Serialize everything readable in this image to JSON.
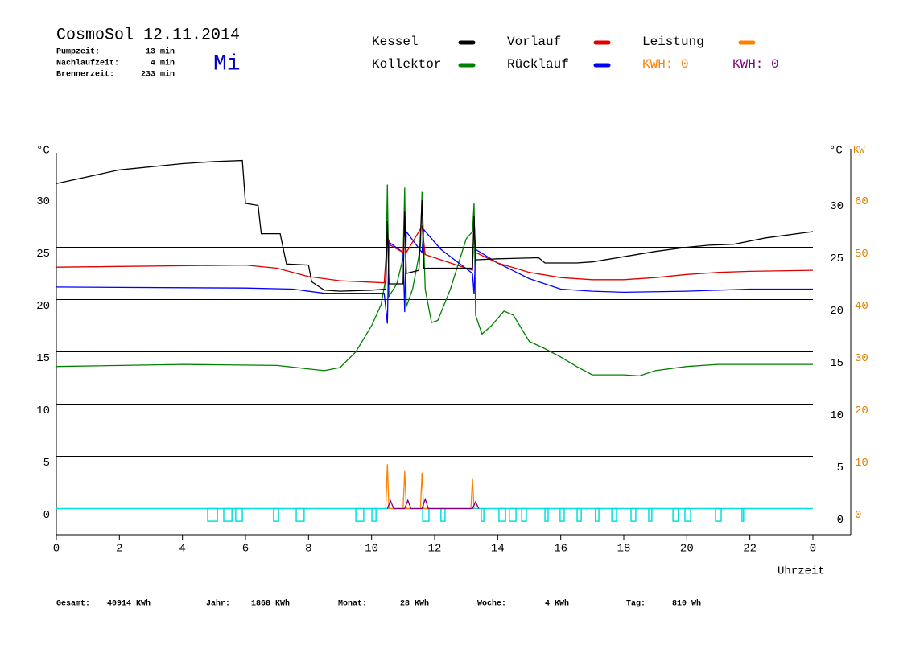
{
  "header": {
    "title": "CosmoSol 12.11.2014",
    "day": "Mi",
    "stats": [
      {
        "label": "Pumpzeit:",
        "value": "13 min"
      },
      {
        "label": "Nachlaufzeit:",
        "value": "4 min"
      },
      {
        "label": "Brennerzeit:",
        "value": "233 min"
      }
    ]
  },
  "chart_data": {
    "type": "line",
    "ylabel": "°C",
    "y2label_c": "°C",
    "y2label": "KW",
    "xlabel": "Uhrzeit",
    "xlim": [
      0,
      25.2
    ],
    "xticks": [
      0,
      2,
      4,
      6,
      8,
      10,
      12,
      14,
      16,
      18,
      20,
      22,
      {
        "value": 24,
        "label": "0"
      }
    ],
    "ylim": [
      -2.5,
      34
    ],
    "yticks": [
      0,
      5,
      10,
      15,
      20,
      25,
      30
    ],
    "y2lim": [
      -5,
      68
    ],
    "y2ticks": [
      0,
      10,
      20,
      30,
      40,
      50,
      60
    ],
    "grid": true,
    "series": [
      {
        "color": "#00e0e0",
        "step": true,
        "x": [
          0,
          4.8,
          5.11,
          5.31,
          5.57,
          5.69,
          5.9,
          6.89,
          7.05,
          7.61,
          7.86,
          9.5,
          9.75,
          10.01,
          10.14,
          11.62,
          11.82,
          12.2,
          12.33,
          13.48,
          13.56,
          14.04,
          14.25,
          14.37,
          14.58,
          14.76,
          14.91,
          15.5,
          15.6,
          15.98,
          16.11,
          16.52,
          16.65,
          17.1,
          17.21,
          17.62,
          17.77,
          18.23,
          18.38,
          18.79,
          18.89,
          19.56,
          19.73,
          19.94,
          20.12,
          20.91,
          21.09,
          21.75,
          21.8,
          24
        ],
        "values": [
          0,
          -1.2,
          0,
          -1.2,
          0,
          -1.2,
          0,
          -1.2,
          0,
          -1.2,
          0,
          -1.2,
          0,
          -1.2,
          0,
          -1.2,
          0,
          -1.2,
          0,
          -1.2,
          0,
          -1.2,
          0,
          -1.2,
          0,
          -1.2,
          0,
          -1.2,
          0,
          -1.2,
          0,
          -1.2,
          0,
          -1.2,
          0,
          -1.2,
          0,
          -1.2,
          0,
          -1.2,
          0,
          -1.2,
          0,
          -1.2,
          0,
          -1.2,
          0,
          -1.2,
          0,
          0
        ]
      },
      {
        "name": "Kollektor",
        "color": "#008000",
        "x": [
          0,
          4,
          7,
          8.5,
          9,
          9.5,
          10,
          10.3,
          10.45,
          10.5,
          10.55,
          10.8,
          11.0,
          11.05,
          11.1,
          11.3,
          11.55,
          11.6,
          11.7,
          11.9,
          12.1,
          12.5,
          13.0,
          13.2,
          13.25,
          13.3,
          13.5,
          13.8,
          14.2,
          14.5,
          15,
          15.5,
          16,
          16.5,
          17,
          18,
          18.5,
          19,
          20,
          21,
          22,
          24
        ],
        "values": [
          13.6,
          13.8,
          13.7,
          13.2,
          13.5,
          15.0,
          17.5,
          19.5,
          22.0,
          31.0,
          20.3,
          21.5,
          24.0,
          30.7,
          19.3,
          21.0,
          25.0,
          30.3,
          21.0,
          17.8,
          18.0,
          21.0,
          25.8,
          26.5,
          29.2,
          18.5,
          16.7,
          17.5,
          18.9,
          18.5,
          16.0,
          15.3,
          14.5,
          13.6,
          12.8,
          12.8,
          12.7,
          13.2,
          13.6,
          13.8,
          13.8,
          13.8
        ]
      },
      {
        "name": "Rücklauf",
        "color": "#0000ff",
        "x": [
          0,
          6,
          7.5,
          8.5,
          10.4,
          10.5,
          10.55,
          11.0,
          11.05,
          11.1,
          11.6,
          11.65,
          12.2,
          13.2,
          13.25,
          13.3,
          14,
          15,
          16,
          17,
          18,
          20,
          22,
          24
        ],
        "values": [
          21.2,
          21.1,
          21.0,
          20.6,
          20.6,
          17.7,
          25.5,
          24.5,
          18.8,
          26.5,
          24.5,
          26.7,
          24.8,
          22.5,
          20.5,
          24.8,
          23.5,
          22.0,
          21.0,
          20.8,
          20.7,
          20.8,
          21.0,
          21.0
        ]
      },
      {
        "name": "Vorlauf",
        "color": "#e00000",
        "x": [
          0,
          6,
          7,
          8,
          9,
          10.4,
          10.5,
          10.6,
          11.0,
          11.05,
          11.1,
          11.6,
          11.7,
          12.5,
          13.2,
          13.25,
          13.3,
          14,
          15,
          16,
          17,
          18,
          19,
          20,
          21,
          22,
          24
        ],
        "values": [
          23.1,
          23.3,
          23.0,
          22.2,
          21.8,
          21.6,
          26.0,
          25.2,
          24.5,
          27.0,
          24.5,
          27.0,
          24.3,
          23.5,
          22.8,
          27.5,
          24.5,
          23.5,
          22.6,
          22.1,
          21.9,
          21.9,
          22.1,
          22.4,
          22.6,
          22.7,
          22.8
        ]
      },
      {
        "name": "Kessel",
        "color": "#000000",
        "x": [
          0,
          2,
          4,
          5,
          5.9,
          6.0,
          6.4,
          6.5,
          7.1,
          7.3,
          8.0,
          8.1,
          8.5,
          9,
          10,
          10.45,
          10.5,
          10.55,
          11.0,
          11.05,
          11.1,
          11.5,
          11.6,
          11.65,
          13.2,
          13.25,
          13.3,
          14,
          15.3,
          15.5,
          16.5,
          17,
          18,
          19,
          20,
          20.7,
          21.5,
          22.5,
          24
        ],
        "values": [
          31.1,
          32.4,
          33.0,
          33.2,
          33.3,
          29.2,
          29.0,
          26.3,
          26.3,
          23.4,
          23.3,
          21.7,
          20.9,
          20.8,
          20.9,
          21.0,
          27.5,
          21.5,
          21.5,
          28.5,
          22.5,
          22.8,
          29.5,
          23.0,
          23.0,
          28.0,
          23.8,
          23.9,
          24.0,
          23.5,
          23.5,
          23.6,
          24.1,
          24.6,
          25.0,
          25.2,
          25.3,
          25.9,
          26.5
        ]
      },
      {
        "name": "Leistung",
        "color": "#ff8000",
        "axis": "y2",
        "kwh": "KWH: 0",
        "x": [
          10.45,
          10.5,
          10.55,
          11.0,
          11.05,
          11.1,
          11.55,
          11.6,
          11.65,
          13.15,
          13.2,
          13.25
        ],
        "values": [
          0,
          8.5,
          0,
          0,
          7.2,
          0,
          0,
          6.9,
          0,
          0,
          5.7,
          0
        ]
      },
      {
        "color": "#800080",
        "axis": "y2",
        "kwh": "KWH: 0",
        "x": [
          10.5,
          10.6,
          10.7,
          11.05,
          11.15,
          11.25,
          11.6,
          11.7,
          11.8,
          13.2,
          13.3,
          13.4
        ],
        "values": [
          0,
          1.5,
          0,
          0,
          1.6,
          0,
          0,
          1.8,
          0,
          0,
          1.3,
          0
        ]
      }
    ]
  },
  "footer": [
    {
      "label": "Gesamt:",
      "value": "40914 KWh"
    },
    {
      "label": "Jahr:",
      "value": "1868 KWh"
    },
    {
      "label": "Monat:",
      "value": "28 KWh"
    },
    {
      "label": "Woche:",
      "value": "4 KWh"
    },
    {
      "label": "Tag:",
      "value": "810 Wh"
    }
  ]
}
